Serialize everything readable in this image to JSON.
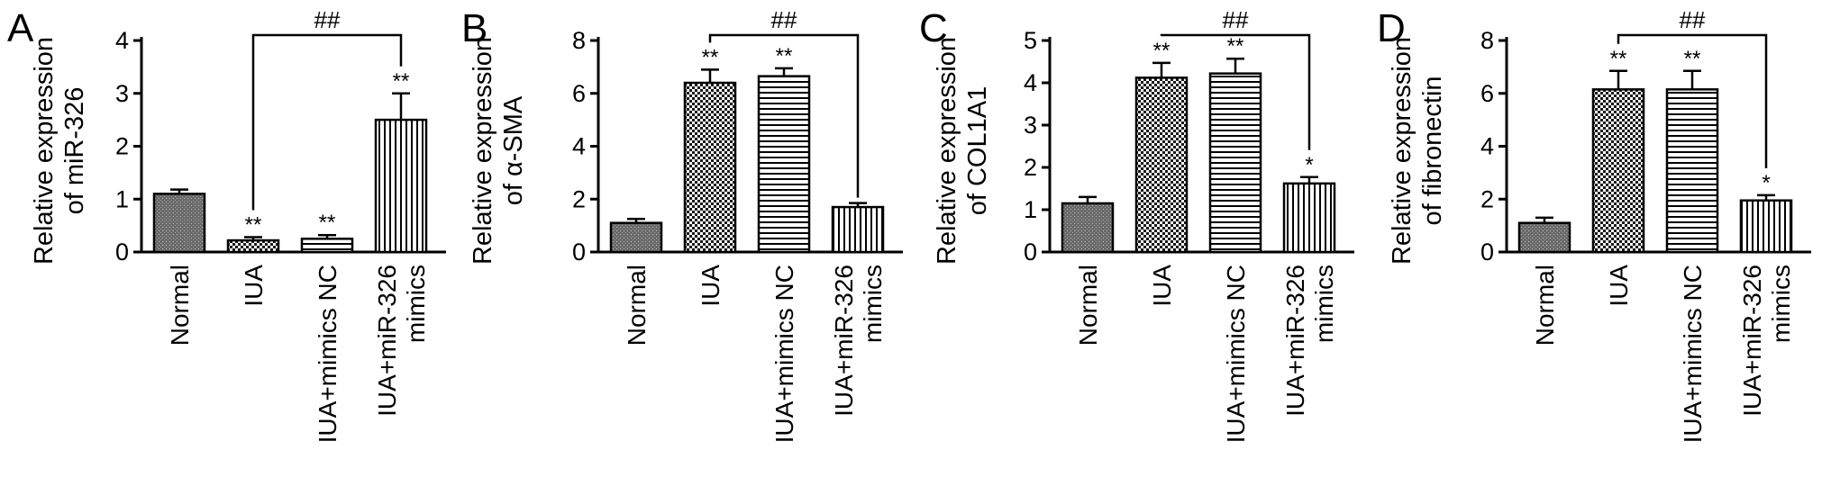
{
  "figure": {
    "categories": [
      "Normal",
      "IUA",
      "IUA+mimics NC",
      "IUA+miR-326\nmimics"
    ]
  },
  "chart_data": [
    {
      "type": "bar",
      "panel": "A",
      "title": "",
      "ylabel": "Relative expression\nof miR-326",
      "ylim": [
        0,
        4
      ],
      "yticks": [
        0,
        1,
        2,
        3,
        4
      ],
      "categories": [
        "Normal",
        "IUA",
        "IUA+mimics NC",
        "IUA+miR-326\nmimics"
      ],
      "values": [
        1.1,
        0.22,
        0.25,
        2.5
      ],
      "errors": [
        0.08,
        0.06,
        0.07,
        0.5
      ],
      "patterns": [
        "dense",
        "check",
        "hlines",
        "vlines"
      ],
      "stars": [
        "",
        "**",
        "**",
        "**"
      ],
      "bracket": {
        "from": 1,
        "to": 3,
        "label": "##"
      }
    },
    {
      "type": "bar",
      "panel": "B",
      "title": "",
      "ylabel": "Relative expression\nof α-SMA",
      "ylim": [
        0,
        8
      ],
      "yticks": [
        0,
        2,
        4,
        6,
        8
      ],
      "categories": [
        "Normal",
        "IUA",
        "IUA+mimics NC",
        "IUA+miR-326\nmimics"
      ],
      "values": [
        1.1,
        6.4,
        6.65,
        1.7
      ],
      "errors": [
        0.15,
        0.5,
        0.3,
        0.15
      ],
      "patterns": [
        "dense",
        "check",
        "hlines",
        "vlines"
      ],
      "stars": [
        "",
        "**",
        "**",
        ""
      ],
      "bracket": {
        "from": 1,
        "to": 3,
        "label": "##"
      }
    },
    {
      "type": "bar",
      "panel": "C",
      "title": "",
      "ylabel": "Relative expression\nof COL1A1",
      "ylim": [
        0,
        5
      ],
      "yticks": [
        0,
        1,
        2,
        3,
        4,
        5
      ],
      "categories": [
        "Normal",
        "IUA",
        "IUA+mimics NC",
        "IUA+miR-326\nmimics"
      ],
      "values": [
        1.15,
        4.12,
        4.22,
        1.62
      ],
      "errors": [
        0.15,
        0.35,
        0.35,
        0.15
      ],
      "patterns": [
        "dense",
        "check",
        "hlines",
        "vlines"
      ],
      "stars": [
        "",
        "**",
        "**",
        "*"
      ],
      "bracket": {
        "from": 1,
        "to": 3,
        "label": "##"
      }
    },
    {
      "type": "bar",
      "panel": "D",
      "title": "",
      "ylabel": "Relative expression\nof fibronectin",
      "ylim": [
        0,
        8
      ],
      "yticks": [
        0,
        2,
        4,
        6,
        8
      ],
      "categories": [
        "Normal",
        "IUA",
        "IUA+mimics NC",
        "IUA+miR-326\nmimics"
      ],
      "values": [
        1.1,
        6.15,
        6.15,
        1.95
      ],
      "errors": [
        0.2,
        0.7,
        0.7,
        0.2
      ],
      "patterns": [
        "dense",
        "check",
        "hlines",
        "vlines"
      ],
      "stars": [
        "",
        "**",
        "**",
        "*"
      ],
      "bracket": {
        "from": 1,
        "to": 3,
        "label": "##"
      }
    }
  ]
}
